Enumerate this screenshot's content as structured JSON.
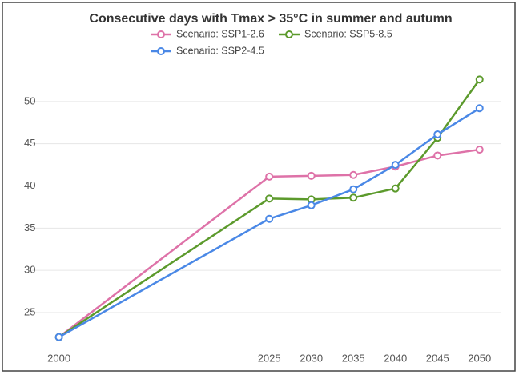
{
  "chart_data": {
    "type": "line",
    "title": "Consecutive days with Tmax > 35°C in summer and autumn",
    "x": [
      2000,
      2025,
      2030,
      2035,
      2040,
      2045,
      2050
    ],
    "series": [
      {
        "name": "Scenario: SSP1-2.6",
        "color": "#de72a8",
        "values": [
          22.1,
          41.1,
          41.2,
          41.3,
          42.3,
          43.6,
          44.3
        ]
      },
      {
        "name": "Scenario: SSP5-8.5",
        "color": "#5c9a2c",
        "values": [
          22.1,
          38.5,
          38.4,
          38.6,
          39.7,
          45.7,
          52.6
        ]
      },
      {
        "name": "Scenario: SSP2-4.5",
        "color": "#4a88e6",
        "values": [
          22.1,
          36.1,
          37.7,
          39.6,
          42.5,
          46.1,
          49.2
        ]
      }
    ],
    "xlim": [
      1996.8,
      2052.5
    ],
    "xticks": [
      2000,
      2025,
      2030,
      2035,
      2040,
      2045,
      2050
    ],
    "ylim": [
      21.5,
      53.2
    ],
    "yticks": [
      25,
      30,
      35,
      40,
      45,
      50
    ],
    "grid": true
  }
}
